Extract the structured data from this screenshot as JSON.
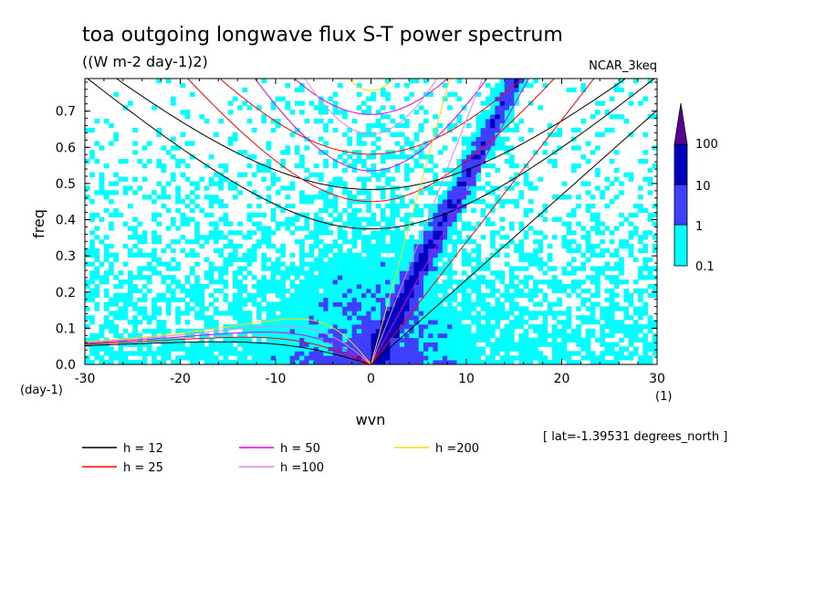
{
  "chart_data": {
    "type": "heatmap",
    "title": "toa outgoing longwave flux S-T power spectrum",
    "subtitle": "((W m-2 day-1)2)",
    "dataset": "NCAR_3keq",
    "xlabel": "wvn",
    "ylabel": "freq",
    "x_unit": "(1)",
    "y_unit": "(day-1)",
    "xlim": [
      -30,
      30
    ],
    "ylim": [
      0,
      0.79
    ],
    "x_ticks": [
      "-30",
      "-20",
      "-10",
      "0",
      "10",
      "20",
      "30"
    ],
    "y_ticks": [
      "0.0",
      "0.1",
      "0.2",
      "0.3",
      "0.4",
      "0.5",
      "0.6",
      "0.7"
    ],
    "footnote": "[ lat=-1.39531 degrees_north ]",
    "colorbar": {
      "levels": [
        "0.1",
        "1",
        "10",
        "100"
      ],
      "colors": [
        "#00ffff",
        "#3f3fff",
        "#0000bf",
        "#5a009a"
      ]
    },
    "legend": [
      {
        "label": "h = 12",
        "color": "#000000"
      },
      {
        "label": "h = 25",
        "color": "#ff0000"
      },
      {
        "label": "h = 50",
        "color": "#dd00dd"
      },
      {
        "label": "h =100",
        "color": "#dd88dd"
      },
      {
        "label": "h =200",
        "color": "#ffd800"
      }
    ],
    "dispersion_curves": [
      {
        "h": 12,
        "color": "#000000"
      },
      {
        "h": 25,
        "color": "#ff0000"
      },
      {
        "h": 50,
        "color": "#dd00dd"
      },
      {
        "h": 100,
        "color": "#dd88dd"
      },
      {
        "h": 200,
        "color": "#ffd800"
      }
    ]
  }
}
